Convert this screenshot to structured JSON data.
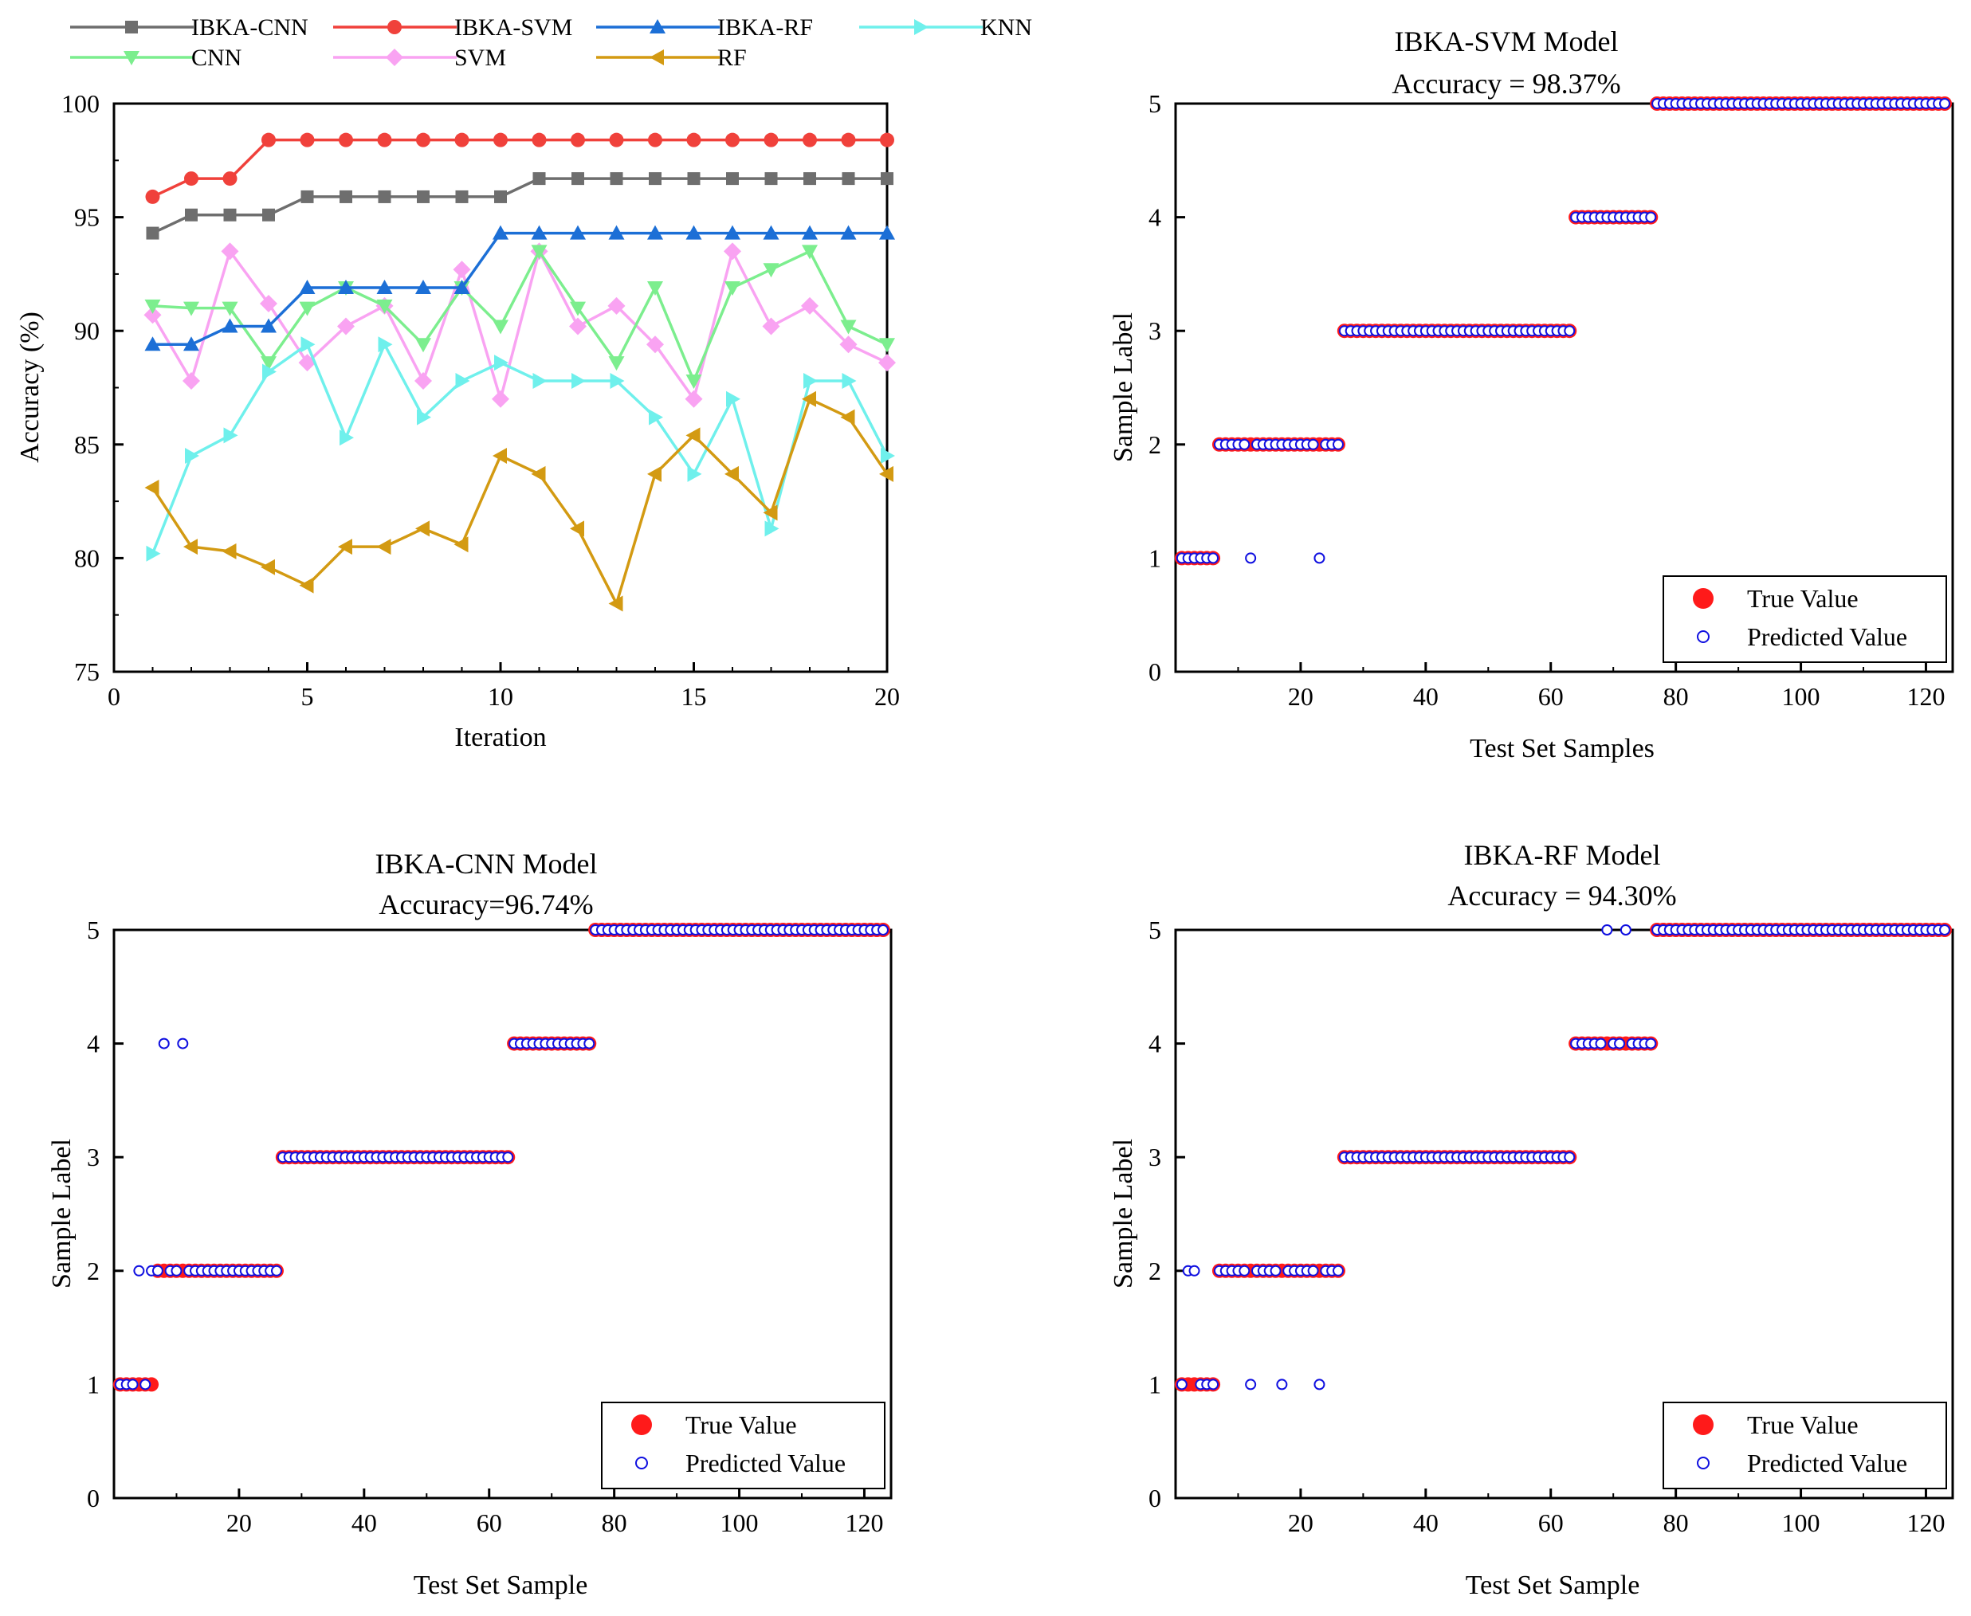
{
  "colors": {
    "ibka_cnn": "#6e6e6e",
    "ibka_svm": "#f0413b",
    "ibka_rf": "#1c6fd6",
    "knn": "#6ff0ec",
    "cnn": "#7cee8e",
    "svm": "#f9a3f2",
    "rf": "#d39a12",
    "true_value": "#ff1a1a",
    "predicted_value": "#1010e0",
    "axis": "#000000"
  },
  "chart_data": [
    {
      "id": "accuracy_iterations",
      "type": "line",
      "title": "",
      "xlabel": "Iteration",
      "ylabel": "Accuracy (%)",
      "xlim": [
        0,
        20
      ],
      "ylim": [
        75,
        100
      ],
      "xticks": [
        0,
        5,
        10,
        15,
        20
      ],
      "yticks": [
        75,
        80,
        85,
        90,
        95,
        100
      ],
      "x": [
        1,
        2,
        3,
        4,
        5,
        6,
        7,
        8,
        9,
        10,
        11,
        12,
        13,
        14,
        15,
        16,
        17,
        18,
        19,
        20
      ],
      "legend": {
        "placement": "top",
        "columns": 4
      },
      "series": [
        {
          "name": "IBKA-CNN",
          "color_key": "ibka_cnn",
          "marker": "square",
          "values": [
            94.3,
            95.1,
            95.1,
            95.1,
            95.9,
            95.9,
            95.9,
            95.9,
            95.9,
            95.9,
            96.7,
            96.7,
            96.7,
            96.7,
            96.7,
            96.7,
            96.7,
            96.7,
            96.7,
            96.7
          ]
        },
        {
          "name": "IBKA-SVM",
          "color_key": "ibka_svm",
          "marker": "circle",
          "values": [
            95.9,
            96.7,
            96.7,
            98.4,
            98.4,
            98.4,
            98.4,
            98.4,
            98.4,
            98.4,
            98.4,
            98.4,
            98.4,
            98.4,
            98.4,
            98.4,
            98.4,
            98.4,
            98.4,
            98.4
          ]
        },
        {
          "name": "IBKA-RF",
          "color_key": "ibka_rf",
          "marker": "triangle-up",
          "values": [
            89.4,
            89.4,
            90.2,
            90.2,
            91.9,
            91.9,
            91.9,
            91.9,
            91.9,
            94.3,
            94.3,
            94.3,
            94.3,
            94.3,
            94.3,
            94.3,
            94.3,
            94.3,
            94.3,
            94.3
          ]
        },
        {
          "name": "KNN",
          "color_key": "knn",
          "marker": "triangle-right",
          "values": [
            80.2,
            84.5,
            85.4,
            88.2,
            89.4,
            85.3,
            89.4,
            86.2,
            87.8,
            88.6,
            87.8,
            87.8,
            87.8,
            86.2,
            83.7,
            87.0,
            81.3,
            87.8,
            87.8,
            84.5
          ]
        },
        {
          "name": "CNN",
          "color_key": "cnn",
          "marker": "triangle-down",
          "values": [
            91.1,
            91.0,
            91.0,
            88.6,
            91.0,
            91.9,
            91.1,
            89.4,
            91.9,
            90.2,
            93.5,
            91.0,
            88.6,
            91.9,
            87.8,
            91.9,
            92.7,
            93.5,
            90.2,
            89.4
          ]
        },
        {
          "name": "SVM",
          "color_key": "svm",
          "marker": "diamond",
          "values": [
            90.7,
            87.8,
            93.5,
            91.2,
            88.6,
            90.2,
            91.1,
            87.8,
            92.7,
            87.0,
            93.5,
            90.2,
            91.1,
            89.4,
            87.0,
            93.5,
            90.2,
            91.1,
            89.4,
            88.6
          ]
        },
        {
          "name": "RF",
          "color_key": "rf",
          "marker": "triangle-left",
          "values": [
            83.1,
            80.5,
            80.3,
            79.6,
            78.8,
            80.5,
            80.5,
            81.3,
            80.6,
            84.5,
            83.7,
            81.3,
            78.0,
            83.7,
            85.4,
            83.7,
            82.0,
            87.0,
            86.2,
            83.7
          ]
        }
      ]
    },
    {
      "id": "ibka_svm_model",
      "type": "scatter",
      "title": "IBKA-SVM Model",
      "subtitle": "Accuracy = 98.37%",
      "xlabel": "Test Set Samples",
      "ylabel": "Sample Label",
      "xlim": [
        0,
        123
      ],
      "ylim": [
        0,
        5
      ],
      "xticks": [
        20,
        40,
        60,
        80,
        100,
        120
      ],
      "yticks": [
        0,
        1,
        2,
        3,
        4,
        5
      ],
      "legend": {
        "placement": "bottom-right",
        "entries": [
          "True Value",
          "Predicted Value"
        ]
      },
      "class_ranges": [
        {
          "label": 1,
          "start": 1,
          "end": 6
        },
        {
          "label": 2,
          "start": 7,
          "end": 26
        },
        {
          "label": 3,
          "start": 27,
          "end": 63
        },
        {
          "label": 4,
          "start": 64,
          "end": 76
        },
        {
          "label": 5,
          "start": 77,
          "end": 123
        }
      ],
      "misclassified": [
        {
          "sample": 12,
          "predicted": 1
        },
        {
          "sample": 23,
          "predicted": 1
        }
      ]
    },
    {
      "id": "ibka_cnn_model",
      "type": "scatter",
      "title": "IBKA-CNN Model",
      "subtitle": "Accuracy=96.74%",
      "xlabel": "Test Set Sample",
      "ylabel": "Sample Label",
      "xlim": [
        0,
        123
      ],
      "ylim": [
        0,
        5
      ],
      "xticks": [
        20,
        40,
        60,
        80,
        100,
        120
      ],
      "yticks": [
        0,
        1,
        2,
        3,
        4,
        5
      ],
      "legend": {
        "placement": "bottom-right",
        "entries": [
          "True Value",
          "Predicted Value"
        ]
      },
      "class_ranges": [
        {
          "label": 1,
          "start": 1,
          "end": 6
        },
        {
          "label": 2,
          "start": 7,
          "end": 26
        },
        {
          "label": 3,
          "start": 27,
          "end": 63
        },
        {
          "label": 4,
          "start": 64,
          "end": 76
        },
        {
          "label": 5,
          "start": 77,
          "end": 123
        }
      ],
      "misclassified": [
        {
          "sample": 4,
          "predicted": 2
        },
        {
          "sample": 8,
          "predicted": 4
        },
        {
          "sample": 11,
          "predicted": 4
        },
        {
          "sample": 6,
          "predicted": 2
        }
      ]
    },
    {
      "id": "ibka_rf_model",
      "type": "scatter",
      "title": "IBKA-RF Model",
      "subtitle": "Accuracy = 94.30%",
      "xlabel": "Test Set Sample",
      "ylabel": "Sample Label",
      "xlim": [
        0,
        123
      ],
      "ylim": [
        0,
        5
      ],
      "xticks": [
        20,
        40,
        60,
        80,
        100,
        120
      ],
      "yticks": [
        0,
        1,
        2,
        3,
        4,
        5
      ],
      "legend": {
        "placement": "bottom-right",
        "entries": [
          "True Value",
          "Predicted Value"
        ]
      },
      "class_ranges": [
        {
          "label": 1,
          "start": 1,
          "end": 6
        },
        {
          "label": 2,
          "start": 7,
          "end": 26
        },
        {
          "label": 3,
          "start": 27,
          "end": 63
        },
        {
          "label": 4,
          "start": 64,
          "end": 76
        },
        {
          "label": 5,
          "start": 77,
          "end": 123
        }
      ],
      "misclassified": [
        {
          "sample": 2,
          "predicted": 2
        },
        {
          "sample": 3,
          "predicted": 2
        },
        {
          "sample": 12,
          "predicted": 1
        },
        {
          "sample": 17,
          "predicted": 1
        },
        {
          "sample": 23,
          "predicted": 1
        },
        {
          "sample": 69,
          "predicted": 5
        },
        {
          "sample": 72,
          "predicted": 5
        }
      ]
    }
  ]
}
